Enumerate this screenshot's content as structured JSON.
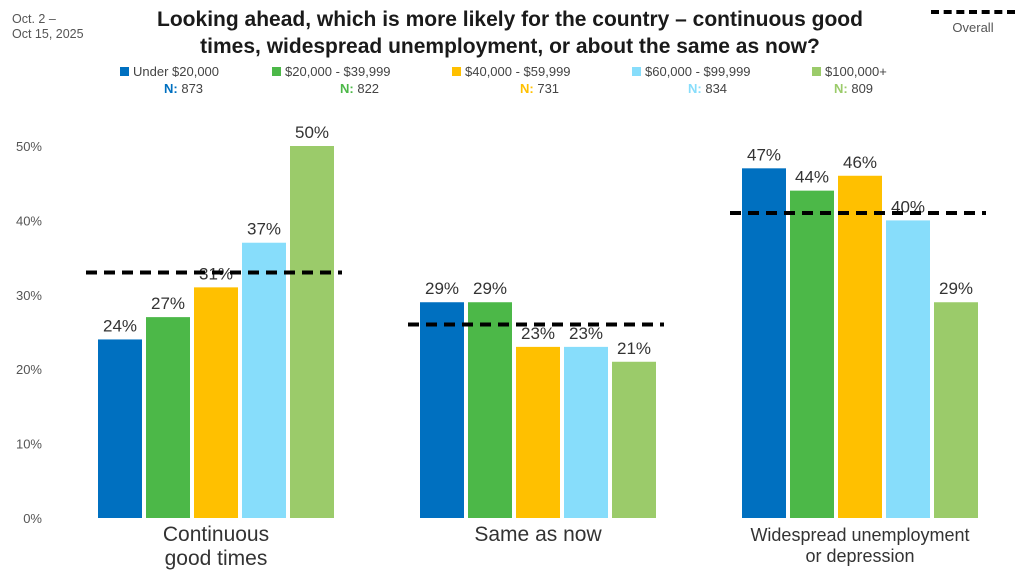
{
  "date_range": [
    "Oct. 2 –",
    "Oct 15, 2025"
  ],
  "title_lines": [
    "Looking ahead, which is more likely for the country – continuous good",
    "times, widespread unemployment, or about the same as now?"
  ],
  "overall_label": "Overall",
  "legend": [
    {
      "label": "Under $20,000",
      "n_key": "N:",
      "n_value": "873",
      "color": "#0070C0"
    },
    {
      "label": "$20,000 - $39,999",
      "n_key": "N:",
      "n_value": "822",
      "color": "#4CB848"
    },
    {
      "label": "$40,000 - $59,999",
      "n_key": "N:",
      "n_value": "731",
      "color": "#FFC000"
    },
    {
      "label": "$60,000 - $99,999",
      "n_key": "N:",
      "n_value": "834",
      "color": "#87DDFB"
    },
    {
      "label": "$100,000+",
      "n_key": "N:",
      "n_value": "809",
      "color": "#9BCB6A"
    }
  ],
  "chart_data": {
    "type": "bar",
    "categories": [
      [
        "Continuous",
        "good times"
      ],
      [
        "Same as now"
      ],
      [
        "Widespread unemployment",
        "or depression"
      ]
    ],
    "series": [
      {
        "name": "Under $20,000",
        "color": "#0070C0",
        "values": [
          24,
          29,
          47
        ],
        "labels": [
          "24%",
          "29%",
          "47%"
        ]
      },
      {
        "name": "$20,000 - $39,999",
        "color": "#4CB848",
        "values": [
          27,
          29,
          44
        ],
        "labels": [
          "27%",
          "29%",
          "44%"
        ]
      },
      {
        "name": "$40,000 - $59,999",
        "color": "#FFC000",
        "values": [
          31,
          23,
          46
        ],
        "labels": [
          "31%",
          "23%",
          "46%"
        ]
      },
      {
        "name": "$60,000 - $99,999",
        "color": "#87DDFB",
        "values": [
          37,
          23,
          40
        ],
        "labels": [
          "37%",
          "23%",
          "40%"
        ]
      },
      {
        "name": "$100,000+",
        "color": "#9BCB6A",
        "values": [
          50,
          21,
          29
        ],
        "labels": [
          "50%",
          "21%",
          "29%"
        ]
      }
    ],
    "overall": {
      "name": "Overall",
      "values": [
        33,
        26,
        41
      ]
    },
    "ylim": [
      0,
      50
    ],
    "yticks": [
      0,
      10,
      20,
      30,
      40,
      50
    ],
    "ytick_labels": [
      "0%",
      "10%",
      "20%",
      "30%",
      "40%",
      "50%"
    ],
    "grid": false,
    "legend_position": "top"
  }
}
